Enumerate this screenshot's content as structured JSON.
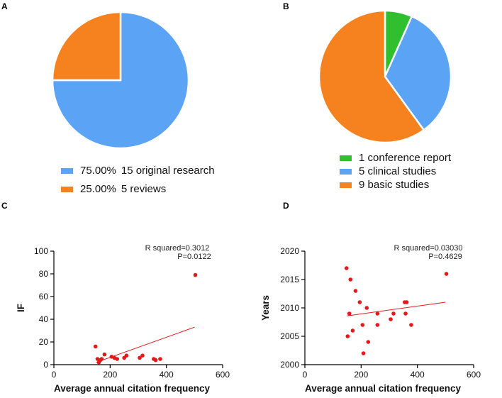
{
  "panels": {
    "a": "A",
    "b": "B",
    "c": "C",
    "d": "D"
  },
  "chart_data": [
    {
      "panel": "A",
      "type": "pie",
      "slices": [
        {
          "percent_label": "75.00%",
          "label": "15 original research",
          "value": 15,
          "color": "#5ba3f5"
        },
        {
          "percent_label": "25.00%",
          "label": "5 reviews",
          "value": 5,
          "color": "#f5821f"
        }
      ]
    },
    {
      "panel": "B",
      "type": "pie",
      "slices": [
        {
          "label": "1 conference report",
          "value": 1,
          "color": "#2fbf2f"
        },
        {
          "label": "5 clinical studies",
          "value": 5,
          "color": "#5ba3f5"
        },
        {
          "label": "9 basic studies",
          "value": 9,
          "color": "#f5821f"
        }
      ]
    },
    {
      "panel": "C",
      "type": "scatter",
      "xlabel": "Average annual citation frequency",
      "ylabel": "IF",
      "xlim": [
        0,
        600
      ],
      "ylim": [
        0,
        100
      ],
      "xticks": [
        0,
        200,
        400,
        600
      ],
      "yticks": [
        0,
        20,
        40,
        60,
        80,
        100
      ],
      "annotation": [
        "R squared=0.3012",
        "P=0.0122"
      ],
      "points": [
        [
          148,
          16
        ],
        [
          155,
          5
        ],
        [
          160,
          2
        ],
        [
          165,
          4
        ],
        [
          170,
          5
        ],
        [
          180,
          9
        ],
        [
          205,
          7
        ],
        [
          215,
          6
        ],
        [
          225,
          5
        ],
        [
          250,
          6
        ],
        [
          258,
          8
        ],
        [
          305,
          6
        ],
        [
          315,
          8
        ],
        [
          355,
          5
        ],
        [
          362,
          4
        ],
        [
          378,
          5
        ],
        [
          503,
          79
        ]
      ],
      "fit": {
        "x": [
          150,
          500
        ],
        "y": [
          2,
          33
        ]
      },
      "marker_color": "#e31a1c",
      "fit_color": "#e31a1c"
    },
    {
      "panel": "D",
      "type": "scatter",
      "xlabel": "Average annual citation frequency",
      "ylabel": "Years",
      "xlim": [
        0,
        600
      ],
      "ylim": [
        2000,
        2020
      ],
      "xticks": [
        0,
        200,
        400,
        600
      ],
      "yticks": [
        2000,
        2005,
        2010,
        2015,
        2020
      ],
      "annotation": [
        "R squared=0.03030",
        "P=0.4629"
      ],
      "points": [
        [
          148,
          2017
        ],
        [
          152,
          2005
        ],
        [
          158,
          2009
        ],
        [
          162,
          2015
        ],
        [
          170,
          2006
        ],
        [
          180,
          2013
        ],
        [
          195,
          2011
        ],
        [
          205,
          2007
        ],
        [
          208,
          2002
        ],
        [
          220,
          2010
        ],
        [
          225,
          2004
        ],
        [
          258,
          2009
        ],
        [
          258,
          2007
        ],
        [
          305,
          2008
        ],
        [
          315,
          2009
        ],
        [
          355,
          2011
        ],
        [
          358,
          2009
        ],
        [
          362,
          2011
        ],
        [
          378,
          2007
        ],
        [
          503,
          2016
        ]
      ],
      "fit": {
        "x": [
          150,
          500
        ],
        "y": [
          2008.6,
          2011
        ]
      },
      "marker_color": "#e31a1c",
      "fit_color": "#e31a1c"
    }
  ]
}
